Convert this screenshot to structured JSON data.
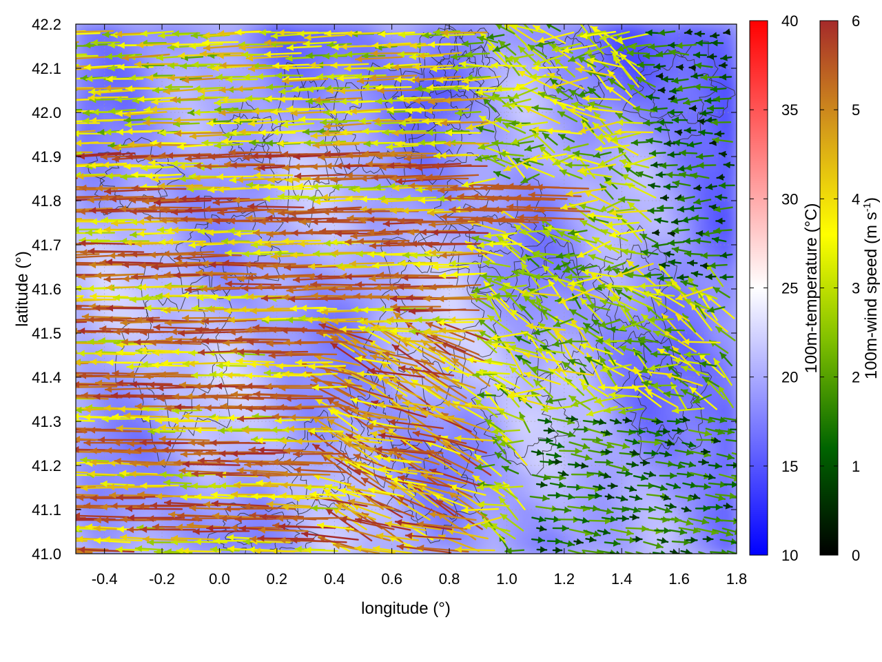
{
  "chart_data": {
    "type": "vector field over heatmap with contours",
    "xlabel": "longitude (°)",
    "ylabel": "latitude (°)",
    "xlim": [
      -0.5,
      1.8
    ],
    "ylim": [
      41.0,
      42.2
    ],
    "xticks": [
      -0.4,
      -0.2,
      0.0,
      0.2,
      0.4,
      0.6,
      0.8,
      1.0,
      1.2,
      1.4,
      1.6,
      1.8
    ],
    "yticks": [
      41.0,
      41.1,
      41.2,
      41.3,
      41.4,
      41.5,
      41.6,
      41.7,
      41.8,
      41.9,
      42.0,
      42.1,
      42.2
    ],
    "x_tick_labels": [
      "-0.4",
      "-0.2",
      "0.0",
      "0.2",
      "0.4",
      "0.6",
      "0.8",
      "1.0",
      "1.2",
      "1.4",
      "1.6",
      "1.8"
    ],
    "y_tick_labels": [
      "41.0",
      "41.1",
      "41.2",
      "41.3",
      "41.4",
      "41.5",
      "41.6",
      "41.7",
      "41.8",
      "41.9",
      "42.0",
      "42.1",
      "42.2"
    ],
    "grid": true,
    "colorbars": [
      {
        "label": "100m-temperature (°C)",
        "range": [
          10,
          40
        ],
        "ticks": [
          "10",
          "15",
          "20",
          "25",
          "30",
          "35",
          "40"
        ],
        "colors": [
          "#0000ff",
          "#ffffff",
          "#ff0000"
        ]
      },
      {
        "label_main": "100m-wind speed (m s",
        "label_sup": "-1",
        "label_end": ")",
        "range": [
          0,
          6
        ],
        "ticks": [
          "0",
          "1",
          "2",
          "3",
          "4",
          "5",
          "6"
        ],
        "colors": [
          "#000000",
          "#006400",
          "#7fbf00",
          "#ffff00",
          "#d49a1a",
          "#a52a2a"
        ]
      }
    ],
    "field_description": {
      "temperature_range_shown": [
        14,
        24
      ],
      "wind_regimes": [
        {
          "region": "west (lon -0.5 to 0.9)",
          "direction": "westward",
          "speed": "5-6"
        },
        {
          "region": "center (lon 0.9 to 1.5)",
          "direction": "westward / mixed",
          "speed": "2-4"
        },
        {
          "region": "east (lon 1.5 to 1.8, north)",
          "direction": "westward",
          "speed": "0-2"
        },
        {
          "region": "southeast (lat below 41.3, lon above 1.1)",
          "direction": "eastward",
          "speed": "0-2"
        }
      ]
    }
  }
}
